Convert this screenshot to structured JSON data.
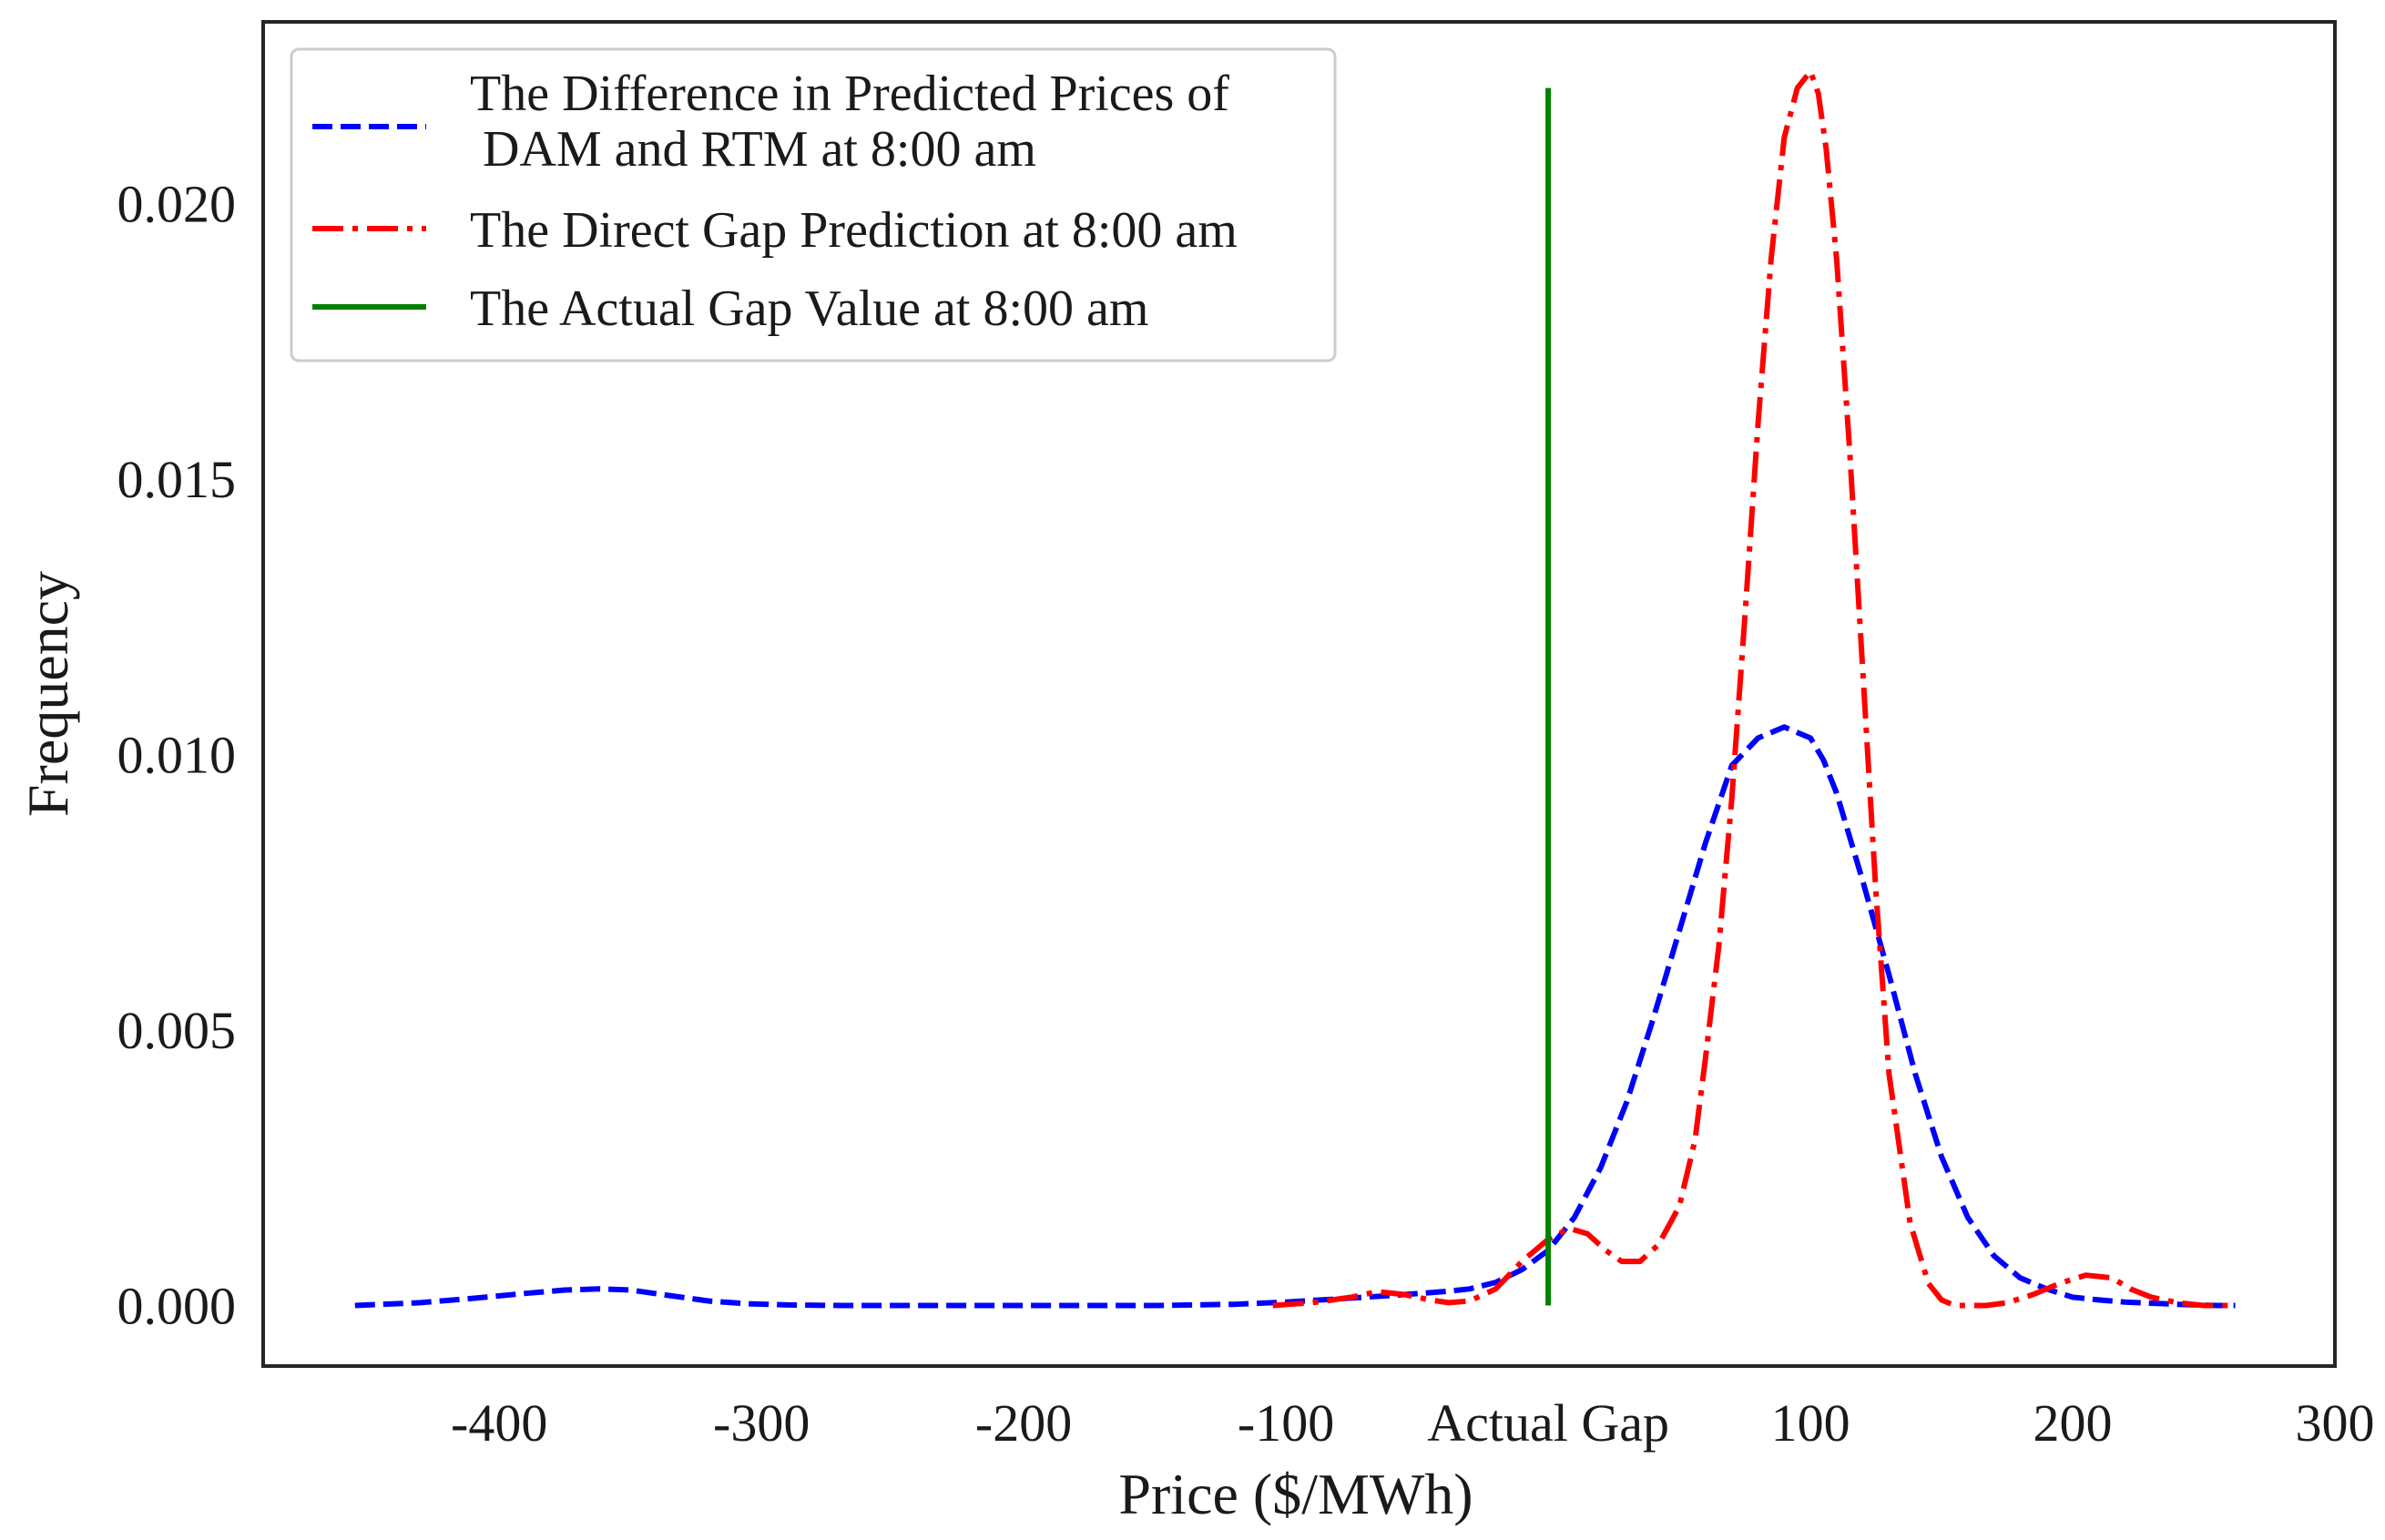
{
  "chart_data": {
    "type": "line",
    "title": "",
    "xlabel": "Price ($/MWh)",
    "ylabel": "Frequency",
    "xlim": [
      -490,
      300
    ],
    "ylim": [
      -0.0011,
      0.0233
    ],
    "grid": false,
    "legend_position": "top-left",
    "xticks": [
      {
        "value": -400,
        "label": "-400"
      },
      {
        "value": -300,
        "label": "-300"
      },
      {
        "value": -200,
        "label": "-200"
      },
      {
        "value": -100,
        "label": "-100"
      },
      {
        "value": 0,
        "label": "Actual Gap"
      },
      {
        "value": 100,
        "label": "100"
      },
      {
        "value": 200,
        "label": "200"
      },
      {
        "value": 300,
        "label": "300"
      }
    ],
    "yticks": [
      {
        "value": 0.0,
        "label": "0.000"
      },
      {
        "value": 0.005,
        "label": "0.005"
      },
      {
        "value": 0.01,
        "label": "0.010"
      },
      {
        "value": 0.015,
        "label": "0.015"
      },
      {
        "value": 0.02,
        "label": "0.020"
      }
    ],
    "series": [
      {
        "name": "The Difference in Predicted Prices of\n DAM and RTM at 8:00 am",
        "legend_lines": [
          "The Difference in Predicted Prices of",
          " DAM and RTM at 8:00 am"
        ],
        "color": "#0000ff",
        "dash": "dashed",
        "x": [
          -455,
          -430,
          -410,
          -390,
          -375,
          -362,
          -350,
          -335,
          -320,
          -305,
          -290,
          -270,
          -250,
          -200,
          -150,
          -120,
          -100,
          -80,
          -60,
          -40,
          -30,
          -20,
          -10,
          0,
          10,
          20,
          30,
          40,
          50,
          60,
          70,
          80,
          90,
          100,
          105,
          110,
          115,
          120,
          130,
          140,
          150,
          160,
          170,
          180,
          190,
          200,
          210,
          220,
          240,
          255,
          262
        ],
        "y": [
          0.0,
          5e-05,
          0.00013,
          0.00022,
          0.00028,
          0.0003,
          0.00028,
          0.00018,
          8e-05,
          3e-05,
          1e-05,
          0.0,
          0.0,
          0.0,
          0.0,
          2e-05,
          6e-05,
          0.00012,
          0.00018,
          0.00025,
          0.0003,
          0.00042,
          0.00065,
          0.001,
          0.0016,
          0.0025,
          0.0037,
          0.0052,
          0.0068,
          0.0084,
          0.0098,
          0.0103,
          0.0105,
          0.0103,
          0.0099,
          0.0093,
          0.0085,
          0.0077,
          0.006,
          0.0042,
          0.0027,
          0.0016,
          0.0009,
          0.0005,
          0.0003,
          0.00015,
          0.0001,
          6e-05,
          2e-05,
          0.0,
          0.0
        ]
      },
      {
        "name": "The Direct Gap Prediction at 8:00 am",
        "legend_lines": [
          "The Direct Gap Prediction at 8:00 am"
        ],
        "color": "#ff0000",
        "dash": "dashdot",
        "x": [
          -105,
          -90,
          -75,
          -65,
          -55,
          -45,
          -38,
          -30,
          -20,
          -10,
          0,
          8,
          15,
          22,
          28,
          35,
          42,
          50,
          56,
          60,
          65,
          70,
          75,
          80,
          85,
          90,
          95,
          100,
          103,
          106,
          110,
          115,
          120,
          125,
          130,
          138,
          145,
          150,
          155,
          160,
          167,
          175,
          185,
          195,
          205,
          215,
          222,
          230,
          240,
          250,
          262
        ],
        "y": [
          0.0,
          5e-05,
          0.00015,
          0.00025,
          0.0002,
          0.0001,
          5e-05,
          8e-05,
          0.0003,
          0.0008,
          0.0012,
          0.0014,
          0.0013,
          0.001,
          0.0008,
          0.0008,
          0.0011,
          0.0018,
          0.003,
          0.0045,
          0.0065,
          0.0092,
          0.0125,
          0.016,
          0.019,
          0.0212,
          0.0221,
          0.0224,
          0.022,
          0.021,
          0.019,
          0.0155,
          0.0115,
          0.0075,
          0.0042,
          0.0015,
          0.0004,
          0.0001,
          0.0,
          0.0,
          0.0,
          5e-05,
          0.0002,
          0.0004,
          0.00055,
          0.0005,
          0.0003,
          0.00015,
          5e-05,
          0.0,
          0.0
        ]
      },
      {
        "name": "The Actual Gap Value at 8:00 am",
        "legend_lines": [
          "The Actual Gap Value at 8:00 am"
        ],
        "color": "#008000",
        "dash": "solid",
        "x": [
          0,
          0
        ],
        "y": [
          0.0,
          0.0221
        ]
      }
    ]
  }
}
